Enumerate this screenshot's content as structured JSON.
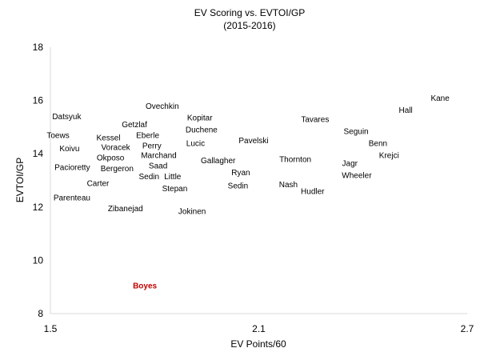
{
  "chart_data": {
    "type": "scatter",
    "title": "EV Scoring vs. EVTOI/GP",
    "subtitle": "(2015-2016)",
    "xlabel": "EV Points/60",
    "ylabel": "EVTOI/GP",
    "xlim": [
      1.5,
      2.7
    ],
    "ylim": [
      8,
      18
    ],
    "xticks": [
      "1.5",
      "2.1",
      "2.7"
    ],
    "yticks": [
      "8",
      "10",
      "12",
      "14",
      "16",
      "18"
    ],
    "grid": false,
    "legend": "none",
    "marker": "label-only",
    "colors": {
      "default": "#000000",
      "highlight": "#c00000",
      "axis": "#d9d9d9"
    },
    "points": [
      {
        "label": "Datsyuk",
        "x": 1.547,
        "y": 15.4
      },
      {
        "label": "Toews",
        "x": 1.522,
        "y": 14.7
      },
      {
        "label": "Koivu",
        "x": 1.555,
        "y": 14.2
      },
      {
        "label": "Pacioretty",
        "x": 1.563,
        "y": 13.5
      },
      {
        "label": "Parenteau",
        "x": 1.562,
        "y": 12.35
      },
      {
        "label": "Carter",
        "x": 1.637,
        "y": 12.9
      },
      {
        "label": "Kessel",
        "x": 1.667,
        "y": 14.6
      },
      {
        "label": "Voracek",
        "x": 1.688,
        "y": 14.25
      },
      {
        "label": "Okposo",
        "x": 1.673,
        "y": 13.85
      },
      {
        "label": "Bergeron",
        "x": 1.692,
        "y": 13.45
      },
      {
        "label": "Zibanejad",
        "x": 1.716,
        "y": 11.95
      },
      {
        "label": "Getzlaf",
        "x": 1.742,
        "y": 15.1
      },
      {
        "label": "Ovechkin",
        "x": 1.822,
        "y": 15.8
      },
      {
        "label": "Eberle",
        "x": 1.78,
        "y": 14.7
      },
      {
        "label": "Perry",
        "x": 1.792,
        "y": 14.3
      },
      {
        "label": "Marchand",
        "x": 1.812,
        "y": 13.95
      },
      {
        "label": "Saad",
        "x": 1.81,
        "y": 13.55
      },
      {
        "label": "Sedin",
        "x": 1.784,
        "y": 13.15
      },
      {
        "label": "Little",
        "x": 1.852,
        "y": 13.15
      },
      {
        "label": "Stepan",
        "x": 1.858,
        "y": 12.7
      },
      {
        "label": "Kopitar",
        "x": 1.93,
        "y": 15.35
      },
      {
        "label": "Duchene",
        "x": 1.935,
        "y": 14.9
      },
      {
        "label": "Lucic",
        "x": 1.918,
        "y": 14.4
      },
      {
        "label": "Jokinen",
        "x": 1.908,
        "y": 11.85
      },
      {
        "label": "Gallagher",
        "x": 1.983,
        "y": 13.75
      },
      {
        "label": "Ryan",
        "x": 2.048,
        "y": 13.3
      },
      {
        "label": "Sedin",
        "x": 2.04,
        "y": 12.8
      },
      {
        "label": "Pavelski",
        "x": 2.085,
        "y": 14.5
      },
      {
        "label": "Thornton",
        "x": 2.205,
        "y": 13.8
      },
      {
        "label": "Nash",
        "x": 2.185,
        "y": 12.85
      },
      {
        "label": "Tavares",
        "x": 2.262,
        "y": 15.3
      },
      {
        "label": "Hudler",
        "x": 2.255,
        "y": 12.6
      },
      {
        "label": "Seguin",
        "x": 2.38,
        "y": 14.85
      },
      {
        "label": "Jagr",
        "x": 2.362,
        "y": 13.65
      },
      {
        "label": "Wheeler",
        "x": 2.382,
        "y": 13.2
      },
      {
        "label": "Benn",
        "x": 2.443,
        "y": 14.4
      },
      {
        "label": "Krejci",
        "x": 2.475,
        "y": 13.95
      },
      {
        "label": "Hall",
        "x": 2.523,
        "y": 15.65
      },
      {
        "label": "Kane",
        "x": 2.622,
        "y": 16.1
      },
      {
        "label": "Boyes",
        "x": 1.772,
        "y": 9.05,
        "highlight": true
      }
    ]
  }
}
